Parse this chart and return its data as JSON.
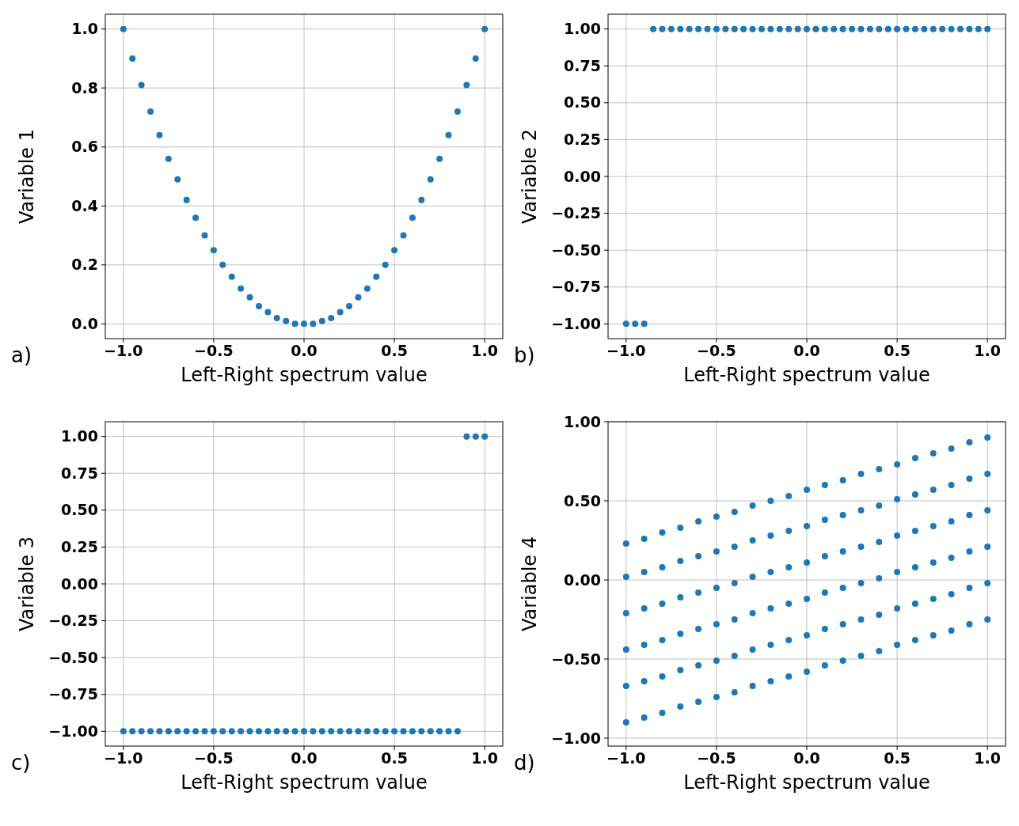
{
  "chart_data": [
    {
      "type": "scatter",
      "xlabel": "Left-Right spectrum value",
      "ylabel": "Variable 1",
      "annotations": [
        "a)"
      ],
      "grid": true,
      "marker": "circle",
      "color": "#1f77b4",
      "x": [
        -1,
        -0.95,
        -0.9,
        -0.85,
        -0.8,
        -0.75,
        -0.7,
        -0.65,
        -0.6,
        -0.55,
        -0.5,
        -0.45,
        -0.4,
        -0.35,
        -0.3,
        -0.25,
        -0.2,
        -0.15,
        -0.1,
        -0.05,
        0,
        0.05,
        0.1,
        0.15,
        0.2,
        0.25,
        0.3,
        0.35,
        0.4,
        0.45,
        0.5,
        0.55,
        0.6,
        0.65,
        0.7,
        0.75,
        0.8,
        0.85,
        0.9,
        0.95,
        1
      ],
      "values": [
        1,
        0.9,
        0.81,
        0.72,
        0.64,
        0.56,
        0.49,
        0.42,
        0.36,
        0.3,
        0.25,
        0.2,
        0.16,
        0.12,
        0.09,
        0.06,
        0.04,
        0.02,
        0.01,
        0,
        0,
        0,
        0.01,
        0.02,
        0.04,
        0.06,
        0.09,
        0.12,
        0.16,
        0.2,
        0.25,
        0.3,
        0.36,
        0.42,
        0.49,
        0.56,
        0.64,
        0.72,
        0.81,
        0.9,
        1
      ],
      "xlim": [
        -1.1,
        1.1
      ],
      "ylim": [
        -0.05,
        1.05
      ],
      "xticks": [
        {
          "value": -1,
          "label": "−1.0"
        },
        {
          "value": -0.5,
          "label": "−0.5"
        },
        {
          "value": 0,
          "label": "0.0"
        },
        {
          "value": 0.5,
          "label": "0.5"
        },
        {
          "value": 1,
          "label": "1.0"
        }
      ],
      "yticks": [
        {
          "value": 0,
          "label": "0.0"
        },
        {
          "value": 0.2,
          "label": "0.2"
        },
        {
          "value": 0.4,
          "label": "0.4"
        },
        {
          "value": 0.6,
          "label": "0.6"
        },
        {
          "value": 0.8,
          "label": "0.8"
        },
        {
          "value": 1,
          "label": "1.0"
        }
      ]
    },
    {
      "type": "scatter",
      "xlabel": "Left-Right spectrum value",
      "ylabel": "Variable 2",
      "annotations": [
        "b)"
      ],
      "grid": true,
      "marker": "circle",
      "color": "#1f77b4",
      "x": [
        -1,
        -0.95,
        -0.9,
        -0.85,
        -0.8,
        -0.75,
        -0.7,
        -0.65,
        -0.6,
        -0.55,
        -0.5,
        -0.45,
        -0.4,
        -0.35,
        -0.3,
        -0.25,
        -0.2,
        -0.15,
        -0.1,
        -0.05,
        0,
        0.05,
        0.1,
        0.15,
        0.2,
        0.25,
        0.3,
        0.35,
        0.4,
        0.45,
        0.5,
        0.55,
        0.6,
        0.65,
        0.7,
        0.75,
        0.8,
        0.85,
        0.9,
        0.95,
        1
      ],
      "values": [
        -1,
        -1,
        -1,
        1,
        1,
        1,
        1,
        1,
        1,
        1,
        1,
        1,
        1,
        1,
        1,
        1,
        1,
        1,
        1,
        1,
        1,
        1,
        1,
        1,
        1,
        1,
        1,
        1,
        1,
        1,
        1,
        1,
        1,
        1,
        1,
        1,
        1,
        1,
        1,
        1,
        1
      ],
      "xlim": [
        -1.1,
        1.1
      ],
      "ylim": [
        -1.1,
        1.1
      ],
      "xticks": [
        {
          "value": -1,
          "label": "−1.0"
        },
        {
          "value": -0.5,
          "label": "−0.5"
        },
        {
          "value": 0,
          "label": "0.0"
        },
        {
          "value": 0.5,
          "label": "0.5"
        },
        {
          "value": 1,
          "label": "1.0"
        }
      ],
      "yticks": [
        {
          "value": -1,
          "label": "−1.00"
        },
        {
          "value": -0.75,
          "label": "−0.75"
        },
        {
          "value": -0.5,
          "label": "−0.50"
        },
        {
          "value": -0.25,
          "label": "−0.25"
        },
        {
          "value": 0,
          "label": "0.00"
        },
        {
          "value": 0.25,
          "label": "0.25"
        },
        {
          "value": 0.5,
          "label": "0.50"
        },
        {
          "value": 0.75,
          "label": "0.75"
        },
        {
          "value": 1,
          "label": "1.00"
        }
      ]
    },
    {
      "type": "scatter",
      "xlabel": "Left-Right spectrum value",
      "ylabel": "Variable 3",
      "annotations": [
        "c)"
      ],
      "grid": true,
      "marker": "circle",
      "color": "#1f77b4",
      "x": [
        -1,
        -0.95,
        -0.9,
        -0.85,
        -0.8,
        -0.75,
        -0.7,
        -0.65,
        -0.6,
        -0.55,
        -0.5,
        -0.45,
        -0.4,
        -0.35,
        -0.3,
        -0.25,
        -0.2,
        -0.15,
        -0.1,
        -0.05,
        0,
        0.05,
        0.1,
        0.15,
        0.2,
        0.25,
        0.3,
        0.35,
        0.4,
        0.45,
        0.5,
        0.55,
        0.6,
        0.65,
        0.7,
        0.75,
        0.8,
        0.85,
        0.9,
        0.95,
        1
      ],
      "values": [
        -1,
        -1,
        -1,
        -1,
        -1,
        -1,
        -1,
        -1,
        -1,
        -1,
        -1,
        -1,
        -1,
        -1,
        -1,
        -1,
        -1,
        -1,
        -1,
        -1,
        -1,
        -1,
        -1,
        -1,
        -1,
        -1,
        -1,
        -1,
        -1,
        -1,
        -1,
        -1,
        -1,
        -1,
        -1,
        -1,
        -1,
        -1,
        1,
        1,
        1
      ],
      "xlim": [
        -1.1,
        1.1
      ],
      "ylim": [
        -1.1,
        1.1
      ],
      "xticks": [
        {
          "value": -1,
          "label": "−1.0"
        },
        {
          "value": -0.5,
          "label": "−0.5"
        },
        {
          "value": 0,
          "label": "0.0"
        },
        {
          "value": 0.5,
          "label": "0.5"
        },
        {
          "value": 1,
          "label": "1.0"
        }
      ],
      "yticks": [
        {
          "value": -1,
          "label": "−1.00"
        },
        {
          "value": -0.75,
          "label": "−0.75"
        },
        {
          "value": -0.5,
          "label": "−0.50"
        },
        {
          "value": -0.25,
          "label": "−0.25"
        },
        {
          "value": 0,
          "label": "0.00"
        },
        {
          "value": 0.25,
          "label": "0.25"
        },
        {
          "value": 0.5,
          "label": "0.50"
        },
        {
          "value": 0.75,
          "label": "0.75"
        },
        {
          "value": 1,
          "label": "1.00"
        }
      ]
    },
    {
      "type": "scatter",
      "xlabel": "Left-Right spectrum value",
      "ylabel": "Variable 4",
      "annotations": [
        "d)"
      ],
      "grid": true,
      "marker": "circle",
      "color": "#1f77b4",
      "x": [
        -1,
        -1,
        -1,
        -1,
        -1,
        -1,
        -0.9,
        -0.9,
        -0.9,
        -0.9,
        -0.9,
        -0.9,
        -0.8,
        -0.8,
        -0.8,
        -0.8,
        -0.8,
        -0.8,
        -0.7,
        -0.7,
        -0.7,
        -0.7,
        -0.7,
        -0.7,
        -0.6,
        -0.6,
        -0.6,
        -0.6,
        -0.6,
        -0.6,
        -0.5,
        -0.5,
        -0.5,
        -0.5,
        -0.5,
        -0.5,
        -0.4,
        -0.4,
        -0.4,
        -0.4,
        -0.4,
        -0.4,
        -0.3,
        -0.3,
        -0.3,
        -0.3,
        -0.3,
        -0.3,
        -0.2,
        -0.2,
        -0.2,
        -0.2,
        -0.2,
        -0.2,
        -0.1,
        -0.1,
        -0.1,
        -0.1,
        -0.1,
        -0.1,
        0,
        0,
        0,
        0,
        0,
        0,
        0.1,
        0.1,
        0.1,
        0.1,
        0.1,
        0.1,
        0.2,
        0.2,
        0.2,
        0.2,
        0.2,
        0.2,
        0.3,
        0.3,
        0.3,
        0.3,
        0.3,
        0.3,
        0.4,
        0.4,
        0.4,
        0.4,
        0.4,
        0.4,
        0.5,
        0.5,
        0.5,
        0.5,
        0.5,
        0.5,
        0.6,
        0.6,
        0.6,
        0.6,
        0.6,
        0.6,
        0.7,
        0.7,
        0.7,
        0.7,
        0.7,
        0.7,
        0.8,
        0.8,
        0.8,
        0.8,
        0.8,
        0.8,
        0.9,
        0.9,
        0.9,
        0.9,
        0.9,
        0.9,
        1,
        1,
        1,
        1,
        1,
        1
      ],
      "values": [
        -0.9,
        -0.67,
        -0.44,
        -0.21,
        0.02,
        0.23,
        -0.87,
        -0.64,
        -0.41,
        -0.18,
        0.05,
        0.26,
        -0.84,
        -0.61,
        -0.38,
        -0.15,
        0.08,
        0.3,
        -0.8,
        -0.57,
        -0.34,
        -0.11,
        0.12,
        0.33,
        -0.77,
        -0.54,
        -0.31,
        -0.08,
        0.15,
        0.37,
        -0.74,
        -0.51,
        -0.28,
        -0.05,
        0.18,
        0.4,
        -0.71,
        -0.48,
        -0.25,
        -0.02,
        0.21,
        0.43,
        -0.67,
        -0.44,
        -0.21,
        0.02,
        0.25,
        0.47,
        -0.64,
        -0.41,
        -0.18,
        0.05,
        0.28,
        0.5,
        -0.61,
        -0.38,
        -0.15,
        0.08,
        0.31,
        0.53,
        -0.58,
        -0.35,
        -0.12,
        0.11,
        0.34,
        0.57,
        -0.54,
        -0.31,
        -0.08,
        0.15,
        0.38,
        0.6,
        -0.51,
        -0.28,
        -0.05,
        0.18,
        0.41,
        0.63,
        -0.48,
        -0.25,
        -0.02,
        0.21,
        0.44,
        0.67,
        -0.45,
        -0.22,
        0.01,
        0.24,
        0.47,
        0.7,
        -0.41,
        -0.18,
        0.05,
        0.28,
        0.51,
        0.73,
        -0.38,
        -0.15,
        0.08,
        0.31,
        0.54,
        0.77,
        -0.35,
        -0.12,
        0.11,
        0.34,
        0.57,
        0.8,
        -0.32,
        -0.09,
        0.14,
        0.37,
        0.6,
        0.83,
        -0.28,
        -0.05,
        0.18,
        0.41,
        0.64,
        0.87,
        -0.25,
        -0.02,
        0.21,
        0.44,
        0.67,
        0.9
      ],
      "xlim": [
        -1.1,
        1.1
      ],
      "ylim": [
        -1.05,
        1.0
      ],
      "xticks": [
        {
          "value": -1,
          "label": "−1.0"
        },
        {
          "value": -0.5,
          "label": "−0.5"
        },
        {
          "value": 0,
          "label": "0.0"
        },
        {
          "value": 0.5,
          "label": "0.5"
        },
        {
          "value": 1,
          "label": "1.0"
        }
      ],
      "yticks": [
        {
          "value": -1,
          "label": "−1.00"
        },
        {
          "value": -0.5,
          "label": "−0.50"
        },
        {
          "value": 0,
          "label": "0.00"
        },
        {
          "value": 0.5,
          "label": "0.50"
        },
        {
          "value": 1,
          "label": "1.00"
        }
      ]
    }
  ]
}
